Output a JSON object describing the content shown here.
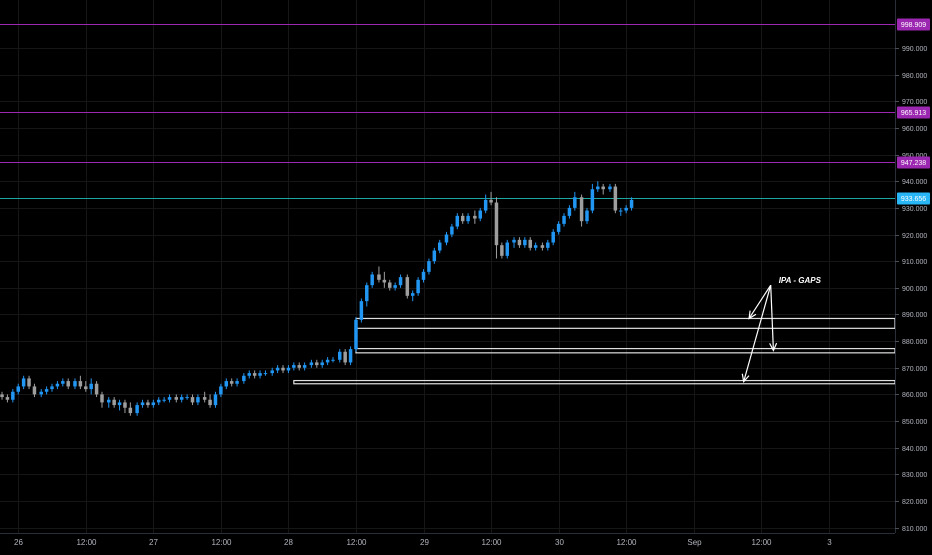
{
  "chart_data": {
    "type": "candlestick",
    "xlabel": "",
    "ylabel": "",
    "ylim": [
      808,
      1008
    ],
    "y_ticks": [
      810,
      820,
      830,
      840,
      850,
      860,
      870,
      880,
      890,
      900,
      910,
      920,
      930,
      940,
      950,
      960,
      970,
      980,
      990
    ],
    "y_tick_labels": [
      "810.000",
      "820.000",
      "830.000",
      "840.000",
      "850.000",
      "860.000",
      "870.000",
      "880.000",
      "890.000",
      "900.000",
      "910.000",
      "920.000",
      "930.000",
      "940.000",
      "950.000",
      "960.000",
      "970.000",
      "980.000",
      "990.000"
    ],
    "x_ticks": [
      {
        "label": "26",
        "t": 0.5
      },
      {
        "label": "12:00",
        "t": 1.0
      },
      {
        "label": "27",
        "t": 1.5
      },
      {
        "label": "12:00",
        "t": 2.0
      },
      {
        "label": "28",
        "t": 2.5
      },
      {
        "label": "12:00",
        "t": 3.0
      },
      {
        "label": "29",
        "t": 3.5
      },
      {
        "label": "12:00",
        "t": 4.0
      },
      {
        "label": "30",
        "t": 4.5
      },
      {
        "label": "12:00",
        "t": 5.0
      },
      {
        "label": "Sep",
        "t": 5.5
      },
      {
        "label": "12:00",
        "t": 6.0
      },
      {
        "label": "3",
        "t": 6.5
      }
    ],
    "xlim": [
      0.365,
      6.99
    ],
    "candle_interval": 0.0417,
    "candles": [
      [
        0.38,
        860,
        861,
        858,
        859
      ],
      [
        0.42,
        859,
        860,
        857,
        858
      ],
      [
        0.46,
        858,
        862,
        857,
        861
      ],
      [
        0.5,
        861,
        864,
        860,
        863
      ],
      [
        0.54,
        863,
        867,
        862,
        866
      ],
      [
        0.58,
        866,
        867,
        862,
        863
      ],
      [
        0.62,
        863,
        864,
        859,
        860
      ],
      [
        0.67,
        860,
        862,
        859,
        861
      ],
      [
        0.71,
        861,
        863,
        860,
        862
      ],
      [
        0.75,
        862,
        864,
        861,
        863
      ],
      [
        0.79,
        863,
        865,
        862,
        864
      ],
      [
        0.83,
        864,
        866,
        863,
        865
      ],
      [
        0.87,
        865,
        866,
        862,
        863
      ],
      [
        0.92,
        863,
        866,
        862,
        865
      ],
      [
        0.96,
        865,
        867,
        862,
        863
      ],
      [
        1.0,
        863,
        865,
        861,
        862
      ],
      [
        1.04,
        862,
        866,
        860,
        864
      ],
      [
        1.08,
        864,
        865,
        859,
        860
      ],
      [
        1.12,
        860,
        861,
        855,
        857
      ],
      [
        1.17,
        857,
        859,
        855,
        858
      ],
      [
        1.21,
        858,
        859,
        855,
        856
      ],
      [
        1.25,
        856,
        858,
        854,
        857
      ],
      [
        1.29,
        857,
        858,
        853,
        855
      ],
      [
        1.33,
        855,
        857,
        852,
        853
      ],
      [
        1.38,
        853,
        857,
        852,
        856
      ],
      [
        1.42,
        856,
        858,
        855,
        857
      ],
      [
        1.46,
        857,
        858,
        855,
        856
      ],
      [
        1.5,
        856,
        858,
        855,
        857
      ],
      [
        1.54,
        857,
        859,
        856,
        858
      ],
      [
        1.58,
        858,
        859,
        857,
        858
      ],
      [
        1.62,
        858,
        860,
        857,
        859
      ],
      [
        1.67,
        859,
        860,
        857,
        858
      ],
      [
        1.71,
        858,
        860,
        857,
        859
      ],
      [
        1.75,
        859,
        860,
        858,
        859
      ],
      [
        1.79,
        859,
        860,
        856,
        857
      ],
      [
        1.83,
        857,
        860,
        856,
        859
      ],
      [
        1.88,
        859,
        861,
        857,
        858
      ],
      [
        1.92,
        858,
        860,
        855,
        856
      ],
      [
        1.96,
        856,
        861,
        855,
        860
      ],
      [
        2.0,
        860,
        864,
        859,
        863
      ],
      [
        2.04,
        863,
        866,
        862,
        865
      ],
      [
        2.08,
        865,
        866,
        863,
        864
      ],
      [
        2.12,
        864,
        866,
        863,
        865
      ],
      [
        2.17,
        865,
        868,
        864,
        867
      ],
      [
        2.21,
        867,
        869,
        866,
        868
      ],
      [
        2.25,
        868,
        869,
        866,
        867
      ],
      [
        2.29,
        867,
        869,
        866,
        868
      ],
      [
        2.33,
        868,
        869,
        867,
        868
      ],
      [
        2.38,
        868,
        870,
        867,
        869
      ],
      [
        2.42,
        869,
        871,
        868,
        870
      ],
      [
        2.46,
        870,
        871,
        868,
        869
      ],
      [
        2.5,
        869,
        871,
        868,
        870
      ],
      [
        2.54,
        870,
        872,
        869,
        871
      ],
      [
        2.58,
        871,
        872,
        869,
        870
      ],
      [
        2.62,
        870,
        872,
        869,
        871
      ],
      [
        2.67,
        871,
        873,
        870,
        872
      ],
      [
        2.71,
        872,
        873,
        870,
        871
      ],
      [
        2.75,
        871,
        873,
        870,
        872
      ],
      [
        2.79,
        872,
        874,
        871,
        873
      ],
      [
        2.83,
        873,
        874,
        872,
        873
      ],
      [
        2.88,
        873,
        877,
        872,
        876
      ],
      [
        2.92,
        876,
        877,
        871,
        872
      ],
      [
        2.96,
        872,
        878,
        871,
        877
      ],
      [
        3.0,
        877,
        889,
        876,
        888
      ],
      [
        3.04,
        888,
        896,
        887,
        895
      ],
      [
        3.08,
        895,
        902,
        893,
        901
      ],
      [
        3.12,
        901,
        906,
        900,
        905
      ],
      [
        3.17,
        905,
        908,
        902,
        903
      ],
      [
        3.21,
        903,
        906,
        900,
        902
      ],
      [
        3.25,
        902,
        903,
        899,
        900
      ],
      [
        3.29,
        900,
        902,
        899,
        901
      ],
      [
        3.33,
        901,
        905,
        900,
        904
      ],
      [
        3.38,
        904,
        905,
        896,
        897
      ],
      [
        3.42,
        897,
        899,
        895,
        898
      ],
      [
        3.46,
        898,
        904,
        897,
        903
      ],
      [
        3.5,
        903,
        907,
        902,
        906
      ],
      [
        3.54,
        906,
        911,
        905,
        910
      ],
      [
        3.58,
        910,
        915,
        909,
        914
      ],
      [
        3.62,
        914,
        918,
        913,
        917
      ],
      [
        3.67,
        917,
        921,
        916,
        920
      ],
      [
        3.71,
        920,
        924,
        919,
        923
      ],
      [
        3.75,
        923,
        928,
        922,
        927
      ],
      [
        3.79,
        927,
        928,
        924,
        925
      ],
      [
        3.83,
        925,
        928,
        924,
        927
      ],
      [
        3.88,
        927,
        929,
        924,
        926
      ],
      [
        3.92,
        926,
        930,
        925,
        929
      ],
      [
        3.96,
        929,
        935,
        928,
        933
      ],
      [
        4.0,
        933,
        936,
        931,
        932
      ],
      [
        4.04,
        932,
        934,
        911,
        916
      ],
      [
        4.08,
        916,
        917,
        911,
        912
      ],
      [
        4.12,
        912,
        918,
        911,
        917
      ],
      [
        4.17,
        917,
        919,
        915,
        918
      ],
      [
        4.21,
        918,
        919,
        915,
        916
      ],
      [
        4.25,
        916,
        919,
        915,
        918
      ],
      [
        4.29,
        918,
        919,
        914,
        915
      ],
      [
        4.33,
        915,
        917,
        914,
        916
      ],
      [
        4.38,
        916,
        917,
        914,
        915
      ],
      [
        4.42,
        915,
        918,
        914,
        917
      ],
      [
        4.46,
        917,
        922,
        916,
        921
      ],
      [
        4.5,
        921,
        925,
        920,
        924
      ],
      [
        4.54,
        924,
        928,
        923,
        927
      ],
      [
        4.58,
        927,
        931,
        926,
        930
      ],
      [
        4.62,
        930,
        936,
        929,
        934
      ],
      [
        4.67,
        934,
        935,
        923,
        925
      ],
      [
        4.71,
        925,
        930,
        924,
        929
      ],
      [
        4.75,
        929,
        939,
        928,
        937
      ],
      [
        4.79,
        937,
        940,
        936,
        938
      ],
      [
        4.83,
        938,
        939,
        935,
        937
      ],
      [
        4.88,
        937,
        939,
        936,
        938
      ],
      [
        4.92,
        938,
        939,
        928,
        929
      ],
      [
        4.96,
        929,
        930,
        927,
        929
      ],
      [
        5.0,
        929,
        931,
        928,
        930
      ],
      [
        5.04,
        930,
        934,
        929,
        933
      ]
    ],
    "horizontal_lines": [
      {
        "y": 998.909,
        "label": "998.909",
        "color": "#9c27b0",
        "label_bg": "#9c27b0"
      },
      {
        "y": 965.913,
        "label": "965.913",
        "color": "#9c27b0",
        "label_bg": "#9c27b0"
      },
      {
        "y": 947.238,
        "label": "947.238",
        "color": "#9c27b0",
        "label_bg": "#9c27b0"
      },
      {
        "y": 933.656,
        "label": "933.656",
        "color": "#1ea6a3",
        "label_bg": "#29b6f6"
      }
    ],
    "gaps": [
      {
        "start_t": 3.0,
        "y_top": 888.5,
        "y_bottom": 884.8
      },
      {
        "start_t": 3.0,
        "y_top": 877.2,
        "y_bottom": 875.6
      },
      {
        "start_t": 2.54,
        "y_top": 865.2,
        "y_bottom": 864.0
      }
    ],
    "annotation": {
      "text": "IPA - GAPS",
      "anchor": {
        "t": 6.07,
        "y": 901
      },
      "arrow_targets": [
        {
          "t": 5.91,
          "y": 888.5
        },
        {
          "t": 6.09,
          "y": 876.5
        },
        {
          "t": 5.87,
          "y": 864.8
        }
      ]
    },
    "colors": {
      "up": "#2196f3",
      "down": "#9e9e9e",
      "background": "#000000",
      "grid": "#161616",
      "axis_text": "#b2b5be",
      "gap_line": "#e0e0e0"
    }
  }
}
